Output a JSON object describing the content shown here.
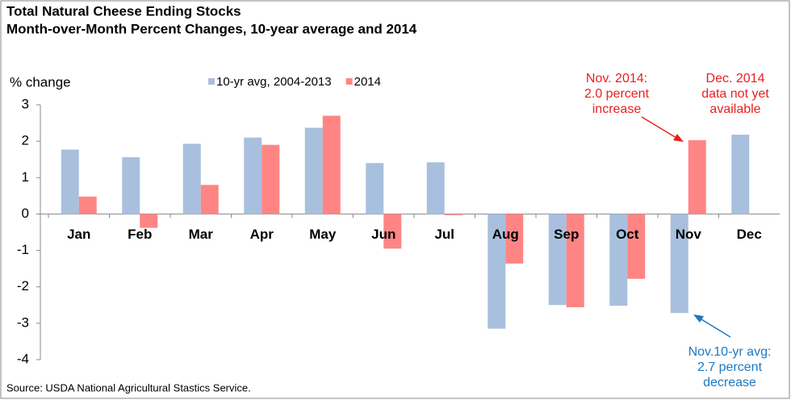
{
  "chart_data": {
    "type": "bar",
    "title_lines": [
      "Total Natural Cheese Ending Stocks",
      "Month-over-Month Percent Changes, 10-year average and 2014"
    ],
    "y_label": "% change",
    "categories": [
      "Jan",
      "Feb",
      "Mar",
      "Apr",
      "May",
      "Jun",
      "Jul",
      "Aug",
      "Sep",
      "Oct",
      "Nov",
      "Dec"
    ],
    "series": [
      {
        "name": "10-yr avg, 2004-2013",
        "color": "#a8c0de",
        "values": [
          1.77,
          1.56,
          1.93,
          2.1,
          2.37,
          1.4,
          1.42,
          -3.15,
          -2.5,
          -2.52,
          -2.72,
          2.18
        ]
      },
      {
        "name": "2014",
        "color": "#ff8585",
        "values": [
          0.48,
          -0.38,
          0.8,
          1.9,
          2.7,
          -0.95,
          -0.03,
          -1.36,
          -2.56,
          -1.78,
          2.03,
          null
        ]
      }
    ],
    "ylim": [
      -4,
      3
    ],
    "yticks": [
      -4,
      -3,
      -2,
      -1,
      0,
      1,
      2,
      3
    ],
    "grid": false,
    "annotations": [
      {
        "lines": [
          "Nov. 2014:",
          "2.0 percent",
          "increase"
        ],
        "color": "#e8201e"
      },
      {
        "lines": [
          "Dec. 2014",
          "data not yet",
          "available"
        ],
        "color": "#e8201e"
      },
      {
        "lines": [
          "Nov.10-yr avg:",
          "2.7 percent",
          "decrease"
        ],
        "color": "#1f78c0"
      }
    ],
    "source": "Source: USDA National Agricultural Stastics Service."
  }
}
